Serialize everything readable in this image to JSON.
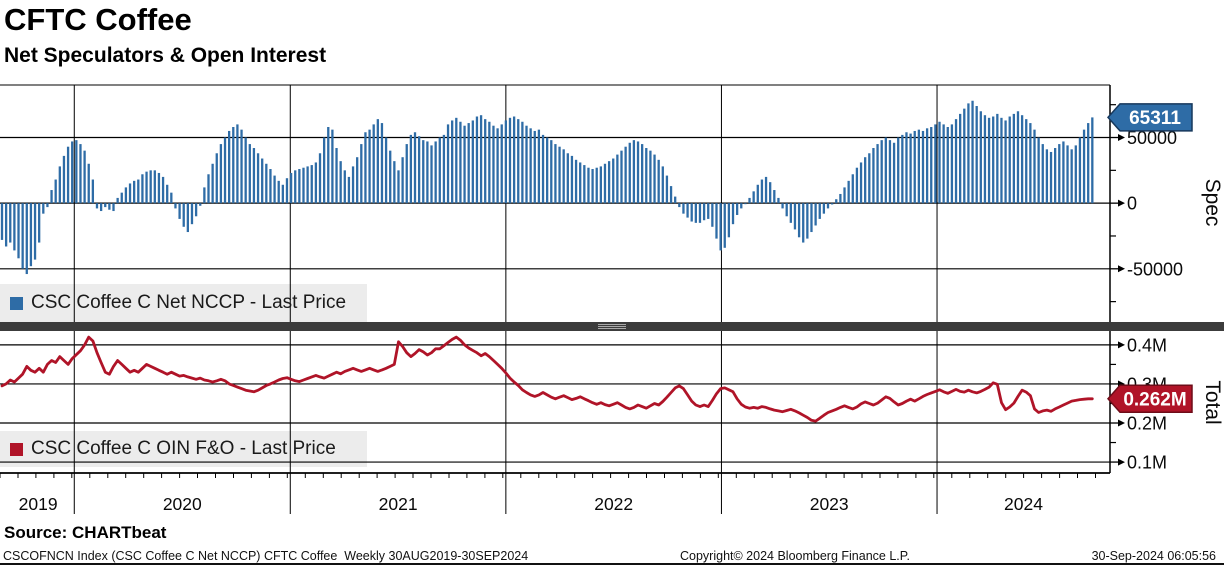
{
  "header": {
    "title": "CFTC Coffee",
    "subtitle": "Net Speculators & Open Interest"
  },
  "colors": {
    "bar_blue": "#2E6CA6",
    "flag_blue_border": "#17385C",
    "line_red": "#B01428",
    "flag_red_border": "#6E0C18",
    "legend_bg": "#ECECEC",
    "grid": "#000000",
    "separator": "#3C3C3C"
  },
  "x_axis": {
    "year_labels": [
      "2019",
      "2020",
      "2021",
      "2022",
      "2023",
      "2024"
    ]
  },
  "x_layout": {
    "total_weeks": 265,
    "year_start_weeks": [
      0,
      17.5,
      69.8,
      122,
      174.2,
      226.4
    ]
  },
  "footer": {
    "source": "Source: CHARTbeat",
    "index_line": "CSCOFNCN Index (CSC Coffee C Net NCCP) CFTC Coffee  Weekly 30AUG2019-30SEP2024",
    "copyright": "Copyright© 2024 Bloomberg Finance L.P.",
    "timestamp": "30-Sep-2024 06:05:56"
  },
  "chart_data": [
    {
      "type": "bar",
      "title": "CSC Coffee C Net NCCP - Last Price",
      "ylabel": "Spec",
      "x_range": "Weekly 30AUG2019-30SEP2024",
      "ylim": [
        -89000,
        90000
      ],
      "yticks": [
        {
          "value": 50000,
          "label": "50000"
        },
        {
          "value": 0,
          "label": "0"
        },
        {
          "value": -50000,
          "label": "-50000"
        }
      ],
      "minor_tick_step": 25000,
      "grid": "on",
      "legend_position": "bottom-left-inside",
      "last_value": 65311,
      "last_value_label": "65311",
      "color": "#2E6CA6",
      "values": [
        -28000,
        -33000,
        -30000,
        -36000,
        -42000,
        -50000,
        -54000,
        -48000,
        -43000,
        -30000,
        -8000,
        -3000,
        10000,
        18000,
        28000,
        36000,
        43000,
        47000,
        48000,
        45000,
        40000,
        30000,
        18000,
        -4000,
        -6000,
        -3000,
        -5000,
        -6000,
        4000,
        8000,
        12000,
        15000,
        17000,
        18000,
        22000,
        24000,
        25000,
        25000,
        23000,
        20000,
        14000,
        8000,
        -4000,
        -12000,
        -18000,
        -22000,
        -16000,
        -10000,
        -2000,
        12000,
        22000,
        30000,
        38000,
        45000,
        50000,
        55000,
        58000,
        60000,
        56000,
        50000,
        45000,
        42000,
        38000,
        34000,
        30000,
        26000,
        21000,
        17000,
        14000,
        19000,
        23000,
        25000,
        26000,
        27000,
        28000,
        29000,
        31000,
        38000,
        50000,
        58000,
        56000,
        42000,
        32000,
        25000,
        20000,
        28000,
        35000,
        45000,
        54000,
        56000,
        60000,
        64000,
        61000,
        50000,
        40000,
        32000,
        25000,
        35000,
        45000,
        52000,
        54000,
        51000,
        48000,
        47000,
        44000,
        47000,
        50000,
        52000,
        60000,
        63000,
        65000,
        62000,
        59000,
        61000,
        63000,
        66000,
        67000,
        64000,
        62000,
        59000,
        57000,
        60000,
        63000,
        65000,
        66000,
        64000,
        62000,
        59000,
        57000,
        55000,
        56000,
        52000,
        50000,
        48000,
        45000,
        43000,
        41000,
        38000,
        36000,
        33000,
        31000,
        29000,
        27000,
        26000,
        27000,
        28000,
        30000,
        32000,
        34000,
        37000,
        40000,
        43000,
        46000,
        48000,
        47000,
        45000,
        42000,
        40000,
        37000,
        33000,
        28000,
        21000,
        13000,
        5000,
        -3000,
        -8000,
        -11000,
        -14000,
        -15000,
        -15000,
        -13000,
        -12000,
        -18000,
        -27000,
        -36000,
        -34000,
        -26000,
        -16000,
        -9000,
        -4000,
        0,
        4000,
        9000,
        14000,
        18000,
        20000,
        16000,
        10000,
        4000,
        -4000,
        -10000,
        -15000,
        -20000,
        -26000,
        -30000,
        -27000,
        -22000,
        -17000,
        -12000,
        -8000,
        -4000,
        -1000,
        3000,
        7000,
        12000,
        17000,
        22000,
        27000,
        31000,
        35000,
        38000,
        42000,
        45000,
        48000,
        50000,
        48000,
        46000,
        50000,
        52000,
        54000,
        53000,
        55000,
        56000,
        55000,
        57000,
        58000,
        60000,
        62000,
        60000,
        58000,
        60000,
        64000,
        68000,
        72000,
        76000,
        78000,
        74000,
        70000,
        67000,
        65000,
        66000,
        68000,
        65000,
        63000,
        66000,
        68000,
        70000,
        67000,
        64000,
        61000,
        56000,
        50000,
        45000,
        41000,
        39000,
        42000,
        45000,
        47000,
        44000,
        41000,
        44000,
        50000,
        56000,
        61000,
        65311
      ]
    },
    {
      "type": "line",
      "title": "CSC Coffee C OIN F&O - Last Price",
      "ylabel": "Total",
      "unit": "M contracts",
      "ylim": [
        0.072,
        0.433
      ],
      "yticks": [
        {
          "value": 0.4,
          "label": "0.4M"
        },
        {
          "value": 0.3,
          "label": "0.3M"
        },
        {
          "value": 0.2,
          "label": "0.2M"
        },
        {
          "value": 0.1,
          "label": "0.1M"
        }
      ],
      "minor_tick_step": 0.05,
      "grid": "on",
      "legend_position": "bottom-left-inside",
      "last_value": 0.262,
      "last_value_label": "0.262M",
      "color": "#B01428",
      "values": [
        0.295,
        0.3,
        0.31,
        0.305,
        0.315,
        0.325,
        0.345,
        0.335,
        0.33,
        0.34,
        0.33,
        0.35,
        0.36,
        0.355,
        0.37,
        0.36,
        0.35,
        0.365,
        0.375,
        0.385,
        0.4,
        0.42,
        0.41,
        0.38,
        0.355,
        0.33,
        0.325,
        0.345,
        0.36,
        0.35,
        0.34,
        0.33,
        0.335,
        0.33,
        0.34,
        0.35,
        0.345,
        0.34,
        0.335,
        0.33,
        0.325,
        0.33,
        0.325,
        0.32,
        0.322,
        0.318,
        0.315,
        0.312,
        0.315,
        0.31,
        0.308,
        0.305,
        0.308,
        0.312,
        0.308,
        0.3,
        0.296,
        0.292,
        0.288,
        0.284,
        0.282,
        0.28,
        0.284,
        0.29,
        0.296,
        0.3,
        0.305,
        0.31,
        0.314,
        0.316,
        0.312,
        0.308,
        0.306,
        0.31,
        0.314,
        0.318,
        0.322,
        0.318,
        0.315,
        0.32,
        0.325,
        0.33,
        0.326,
        0.332,
        0.336,
        0.34,
        0.336,
        0.332,
        0.336,
        0.34,
        0.336,
        0.332,
        0.336,
        0.34,
        0.345,
        0.35,
        0.408,
        0.396,
        0.38,
        0.37,
        0.378,
        0.388,
        0.382,
        0.374,
        0.38,
        0.39,
        0.39,
        0.398,
        0.406,
        0.414,
        0.42,
        0.412,
        0.4,
        0.392,
        0.386,
        0.38,
        0.372,
        0.378,
        0.37,
        0.36,
        0.35,
        0.34,
        0.328,
        0.315,
        0.305,
        0.296,
        0.285,
        0.278,
        0.272,
        0.268,
        0.272,
        0.278,
        0.272,
        0.266,
        0.262,
        0.266,
        0.27,
        0.265,
        0.26,
        0.263,
        0.267,
        0.262,
        0.257,
        0.252,
        0.248,
        0.252,
        0.247,
        0.244,
        0.248,
        0.252,
        0.246,
        0.24,
        0.236,
        0.24,
        0.246,
        0.242,
        0.238,
        0.244,
        0.25,
        0.246,
        0.255,
        0.266,
        0.278,
        0.29,
        0.295,
        0.288,
        0.272,
        0.256,
        0.246,
        0.242,
        0.246,
        0.242,
        0.258,
        0.275,
        0.288,
        0.29,
        0.285,
        0.28,
        0.262,
        0.248,
        0.241,
        0.238,
        0.24,
        0.238,
        0.242,
        0.24,
        0.236,
        0.233,
        0.231,
        0.229,
        0.232,
        0.235,
        0.231,
        0.226,
        0.22,
        0.214,
        0.207,
        0.205,
        0.212,
        0.22,
        0.227,
        0.231,
        0.235,
        0.24,
        0.244,
        0.24,
        0.236,
        0.241,
        0.249,
        0.254,
        0.25,
        0.246,
        0.251,
        0.259,
        0.267,
        0.263,
        0.254,
        0.246,
        0.25,
        0.256,
        0.261,
        0.256,
        0.262,
        0.268,
        0.273,
        0.277,
        0.281,
        0.285,
        0.28,
        0.276,
        0.281,
        0.286,
        0.281,
        0.279,
        0.284,
        0.28,
        0.277,
        0.281,
        0.286,
        0.292,
        0.303,
        0.299,
        0.252,
        0.234,
        0.241,
        0.251,
        0.268,
        0.284,
        0.279,
        0.27,
        0.236,
        0.227,
        0.231,
        0.233,
        0.23,
        0.236,
        0.241,
        0.246,
        0.251,
        0.256,
        0.258,
        0.26,
        0.261,
        0.262,
        0.262
      ]
    }
  ]
}
